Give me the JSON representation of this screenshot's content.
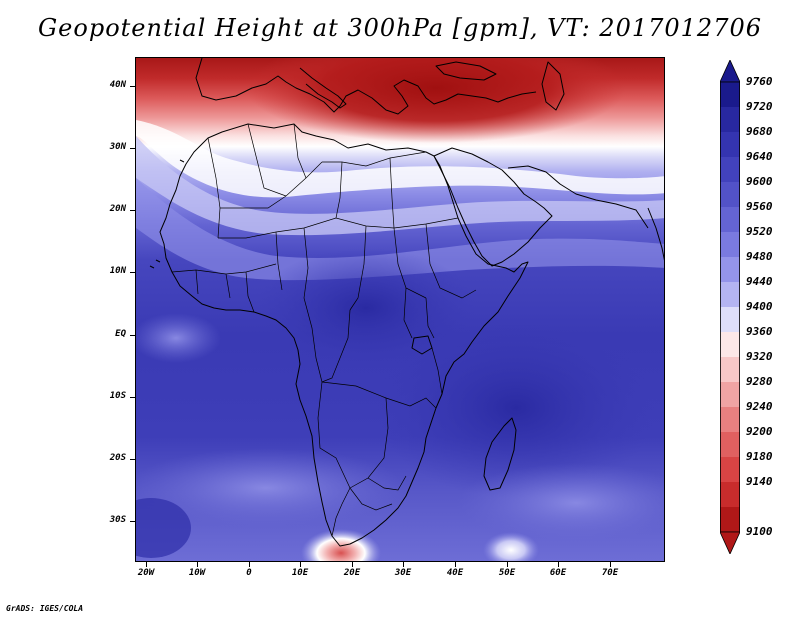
{
  "title": "Geopotential Height at 300hPa [gpm], VT: 2017012706",
  "credit": "GrADS: IGES/COLA",
  "map": {
    "lon_range": [
      -25,
      80
    ],
    "lat_range": [
      -37,
      45
    ],
    "y_ticks": [
      "40N",
      "30N",
      "20N",
      "10N",
      "EQ",
      "10S",
      "20S",
      "30S"
    ],
    "x_ticks": [
      "20W",
      "10W",
      "0",
      "10E",
      "20E",
      "30E",
      "40E",
      "50E",
      "60E",
      "70E"
    ],
    "field": "Geopotential Height at 300hPa",
    "units": "gpm"
  },
  "colorbar": {
    "levels": [
      "9760",
      "9720",
      "9680",
      "9640",
      "9600",
      "9560",
      "9520",
      "9480",
      "9440",
      "9400",
      "9360",
      "9320",
      "9280",
      "9240",
      "9200",
      "9180",
      "9140",
      "9100"
    ],
    "colors": [
      "#1a1a8c",
      "#2828a0",
      "#3434b0",
      "#4242bc",
      "#5252c8",
      "#6464d4",
      "#7a7ae0",
      "#9494ea",
      "#b4b4f2",
      "#dedefa",
      "#fde8e8",
      "#f8c8c8",
      "#f0a4a4",
      "#e88080",
      "#e06060",
      "#d84444",
      "#c82c2c",
      "#b01818"
    ]
  }
}
